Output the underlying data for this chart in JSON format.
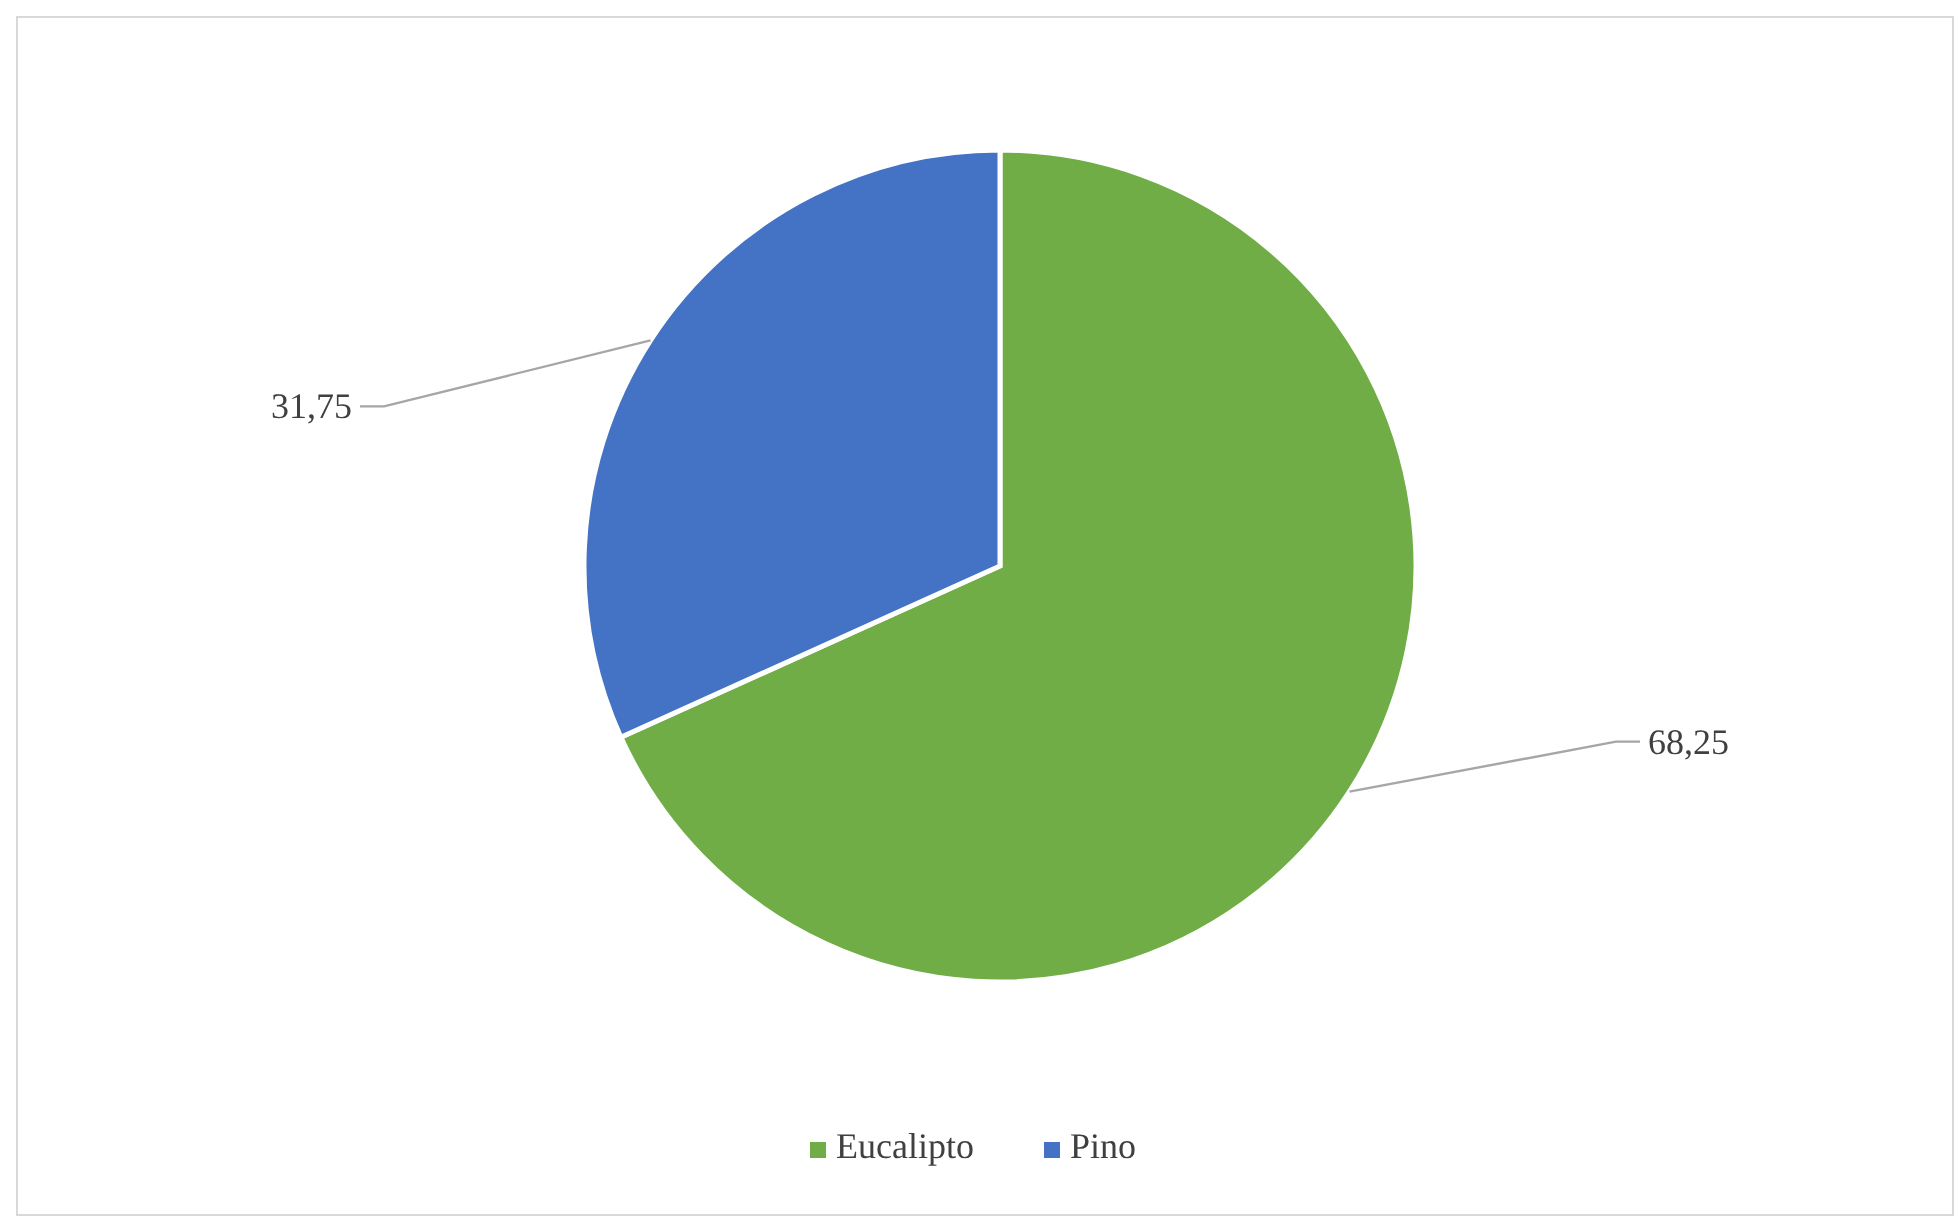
{
  "chart_data": {
    "type": "pie",
    "categories": [
      "Eucalipto",
      "Pino"
    ],
    "values": [
      68.25,
      31.75
    ],
    "colors": [
      "#70ad47",
      "#4472c4"
    ],
    "value_labels": [
      "68,25",
      "31,75"
    ],
    "legend": "bottom"
  }
}
